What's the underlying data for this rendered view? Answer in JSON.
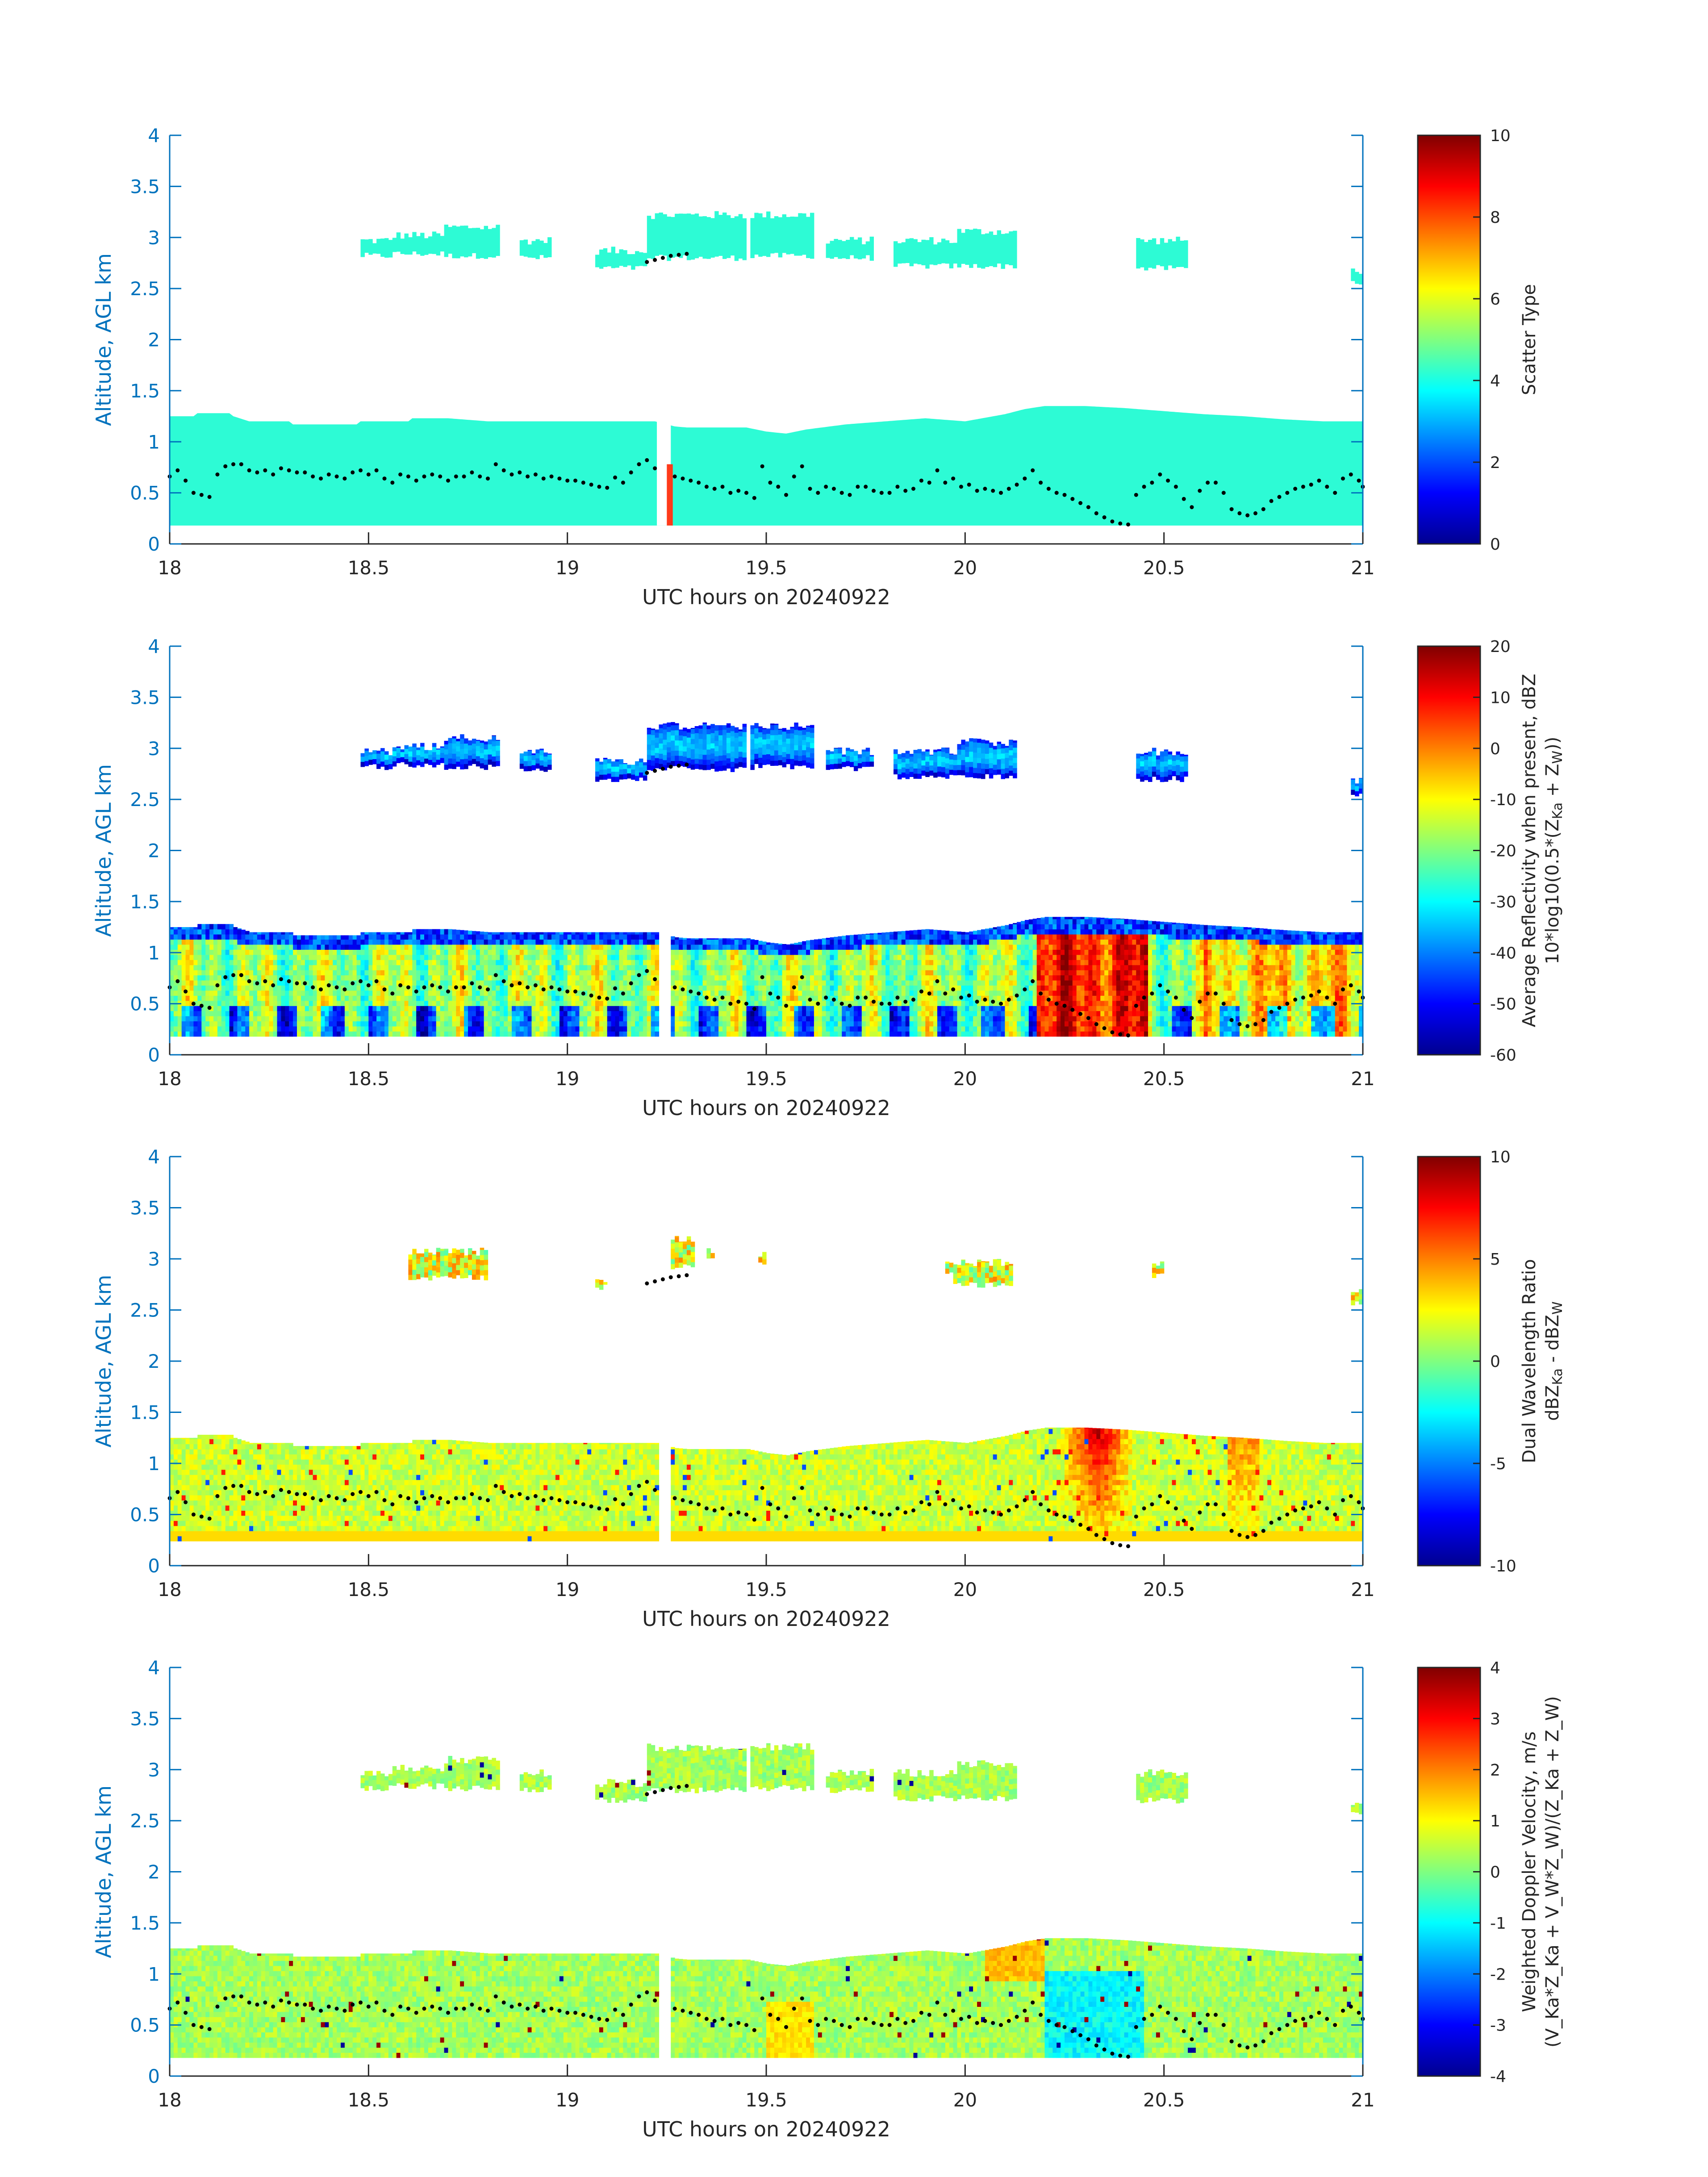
{
  "figure": {
    "background": "#ffffff",
    "axis_color": "#262626",
    "ylabel_color": "#0072BD",
    "cloud_fill_color": "#2dfbd5",
    "spike_color": "#ff3a1a",
    "marker_color": "#000000"
  },
  "chart_data": [
    {
      "type": "heatmap",
      "id": "scatter-type",
      "xlabel": "UTC hours on 20240922",
      "ylabel": "Altitude, AGL km",
      "xlim": [
        18,
        21
      ],
      "ylim": [
        0,
        4
      ],
      "xticks": [
        "18",
        "18.5",
        "19",
        "19.5",
        "20",
        "20.5",
        "21"
      ],
      "yticks": [
        "0",
        "0.5",
        "1",
        "1.5",
        "2",
        "2.5",
        "3",
        "3.5",
        "4"
      ],
      "colorbar": {
        "label": "Scatter Type",
        "range": [
          0,
          10
        ],
        "ticks": [
          "0",
          "2",
          "4",
          "6",
          "8",
          "10"
        ],
        "colormap": "jet"
      },
      "field": "type",
      "approx_value_low_cloud": 3.8,
      "spike_value": 8
    },
    {
      "type": "heatmap",
      "id": "reflectivity",
      "xlabel": "UTC hours on 20240922",
      "ylabel": "Altitude, AGL km",
      "xlim": [
        18,
        21
      ],
      "ylim": [
        0,
        4
      ],
      "xticks": [
        "18",
        "18.5",
        "19",
        "19.5",
        "20",
        "20.5",
        "21"
      ],
      "yticks": [
        "0",
        "0.5",
        "1",
        "1.5",
        "2",
        "2.5",
        "3",
        "3.5",
        "4"
      ],
      "colorbar": {
        "label_line1": "Average Reflectivity when present, dBZ",
        "label_line2_base": "10*log10(0.5*(Z",
        "sub_ka": "Ka",
        "label_line2_mid": " + Z",
        "sub_w": "W",
        "label_line2_end": "))",
        "range": [
          -60,
          20
        ],
        "ticks": [
          "-60",
          "-50",
          "-40",
          "-30",
          "-20",
          "-10",
          "0",
          "10",
          "20"
        ],
        "colormap": "jet"
      },
      "field": "reflectivity"
    },
    {
      "type": "heatmap",
      "id": "dual-wavelength-ratio",
      "xlabel": "UTC hours on 20240922",
      "ylabel": "Altitude, AGL km",
      "xlim": [
        18,
        21
      ],
      "ylim": [
        0,
        4
      ],
      "xticks": [
        "18",
        "18.5",
        "19",
        "19.5",
        "20",
        "20.5",
        "21"
      ],
      "yticks": [
        "0",
        "0.5",
        "1",
        "1.5",
        "2",
        "2.5",
        "3",
        "3.5",
        "4"
      ],
      "colorbar": {
        "label_line1": "Dual Wavelength Ratio",
        "label_line2_base": "dBZ",
        "sub_ka": "Ka",
        "label_line2_mid": " - dBZ",
        "sub_w": "W",
        "range": [
          -10,
          10
        ],
        "ticks": [
          "-10",
          "-5",
          "0",
          "5",
          "10"
        ],
        "colormap": "jet"
      },
      "field": "dwr"
    },
    {
      "type": "heatmap",
      "id": "doppler-velocity",
      "xlabel": "UTC hours on 20240922",
      "ylabel": "Altitude, AGL km",
      "xlim": [
        18,
        21
      ],
      "ylim": [
        0,
        4
      ],
      "xticks": [
        "18",
        "18.5",
        "19",
        "19.5",
        "20",
        "20.5",
        "21"
      ],
      "yticks": [
        "0",
        "0.5",
        "1",
        "1.5",
        "2",
        "2.5",
        "3",
        "3.5",
        "4"
      ],
      "colorbar": {
        "label_line1": "Weighted Doppler Velocity, m/s",
        "label_line2_text": "(V_Ka*Z_Ka + V_W*Z_W)/(Z_Ka + Z_W)",
        "range": [
          -4,
          4
        ],
        "ticks": [
          "-4",
          "-3",
          "-2",
          "-1",
          "0",
          "1",
          "2",
          "3",
          "4"
        ],
        "colormap": "jet"
      },
      "field": "velocity"
    }
  ],
  "low_cloud": {
    "top_profile_km": [
      [
        18.0,
        1.25
      ],
      [
        18.06,
        1.25
      ],
      [
        18.07,
        1.28
      ],
      [
        18.15,
        1.28
      ],
      [
        18.16,
        1.25
      ],
      [
        18.2,
        1.2
      ],
      [
        18.3,
        1.2
      ],
      [
        18.31,
        1.17
      ],
      [
        18.47,
        1.17
      ],
      [
        18.48,
        1.2
      ],
      [
        18.6,
        1.2
      ],
      [
        18.61,
        1.23
      ],
      [
        18.7,
        1.23
      ],
      [
        18.8,
        1.2
      ],
      [
        19.0,
        1.2
      ],
      [
        19.22,
        1.2
      ],
      [
        19.27,
        1.15
      ],
      [
        19.3,
        1.14
      ],
      [
        19.45,
        1.14
      ],
      [
        19.5,
        1.1
      ],
      [
        19.55,
        1.08
      ],
      [
        19.6,
        1.12
      ],
      [
        19.7,
        1.17
      ],
      [
        19.8,
        1.2
      ],
      [
        19.9,
        1.23
      ],
      [
        20.0,
        1.2
      ],
      [
        20.1,
        1.27
      ],
      [
        20.15,
        1.32
      ],
      [
        20.2,
        1.35
      ],
      [
        20.3,
        1.35
      ],
      [
        20.4,
        1.33
      ],
      [
        20.5,
        1.3
      ],
      [
        20.6,
        1.27
      ],
      [
        20.7,
        1.25
      ],
      [
        20.8,
        1.22
      ],
      [
        20.9,
        1.2
      ],
      [
        21.0,
        1.2
      ]
    ],
    "base_km": 0.18,
    "gap_hours": [
      [
        19.225,
        19.26
      ]
    ],
    "spike_hours": [
      19.25,
      19.265
    ],
    "spike_top_km": 0.78
  },
  "upper_cloud": {
    "blobs": [
      {
        "x": [
          18.48,
          18.56
        ],
        "y": [
          2.82,
          2.97
        ]
      },
      {
        "x": [
          18.56,
          18.69
        ],
        "y": [
          2.84,
          3.02
        ]
      },
      {
        "x": [
          18.69,
          18.83
        ],
        "y": [
          2.82,
          3.1
        ]
      },
      {
        "x": [
          18.88,
          18.96
        ],
        "y": [
          2.8,
          2.97
        ]
      },
      {
        "x": [
          19.07,
          19.2
        ],
        "y": [
          2.7,
          2.87
        ]
      },
      {
        "x": [
          19.2,
          19.45
        ],
        "y": [
          2.8,
          3.22
        ]
      },
      {
        "x": [
          19.46,
          19.62
        ],
        "y": [
          2.82,
          3.22
        ]
      },
      {
        "x": [
          19.65,
          19.77
        ],
        "y": [
          2.8,
          2.97
        ]
      },
      {
        "x": [
          19.82,
          19.98
        ],
        "y": [
          2.72,
          2.97
        ]
      },
      {
        "x": [
          19.98,
          20.13
        ],
        "y": [
          2.72,
          3.06
        ]
      },
      {
        "x": [
          20.43,
          20.56
        ],
        "y": [
          2.7,
          2.97
        ]
      },
      {
        "x": [
          20.97,
          21.0
        ],
        "y": [
          2.56,
          2.68
        ]
      }
    ],
    "dwr_blobs": [
      {
        "x": [
          18.6,
          18.8
        ],
        "y": [
          2.82,
          3.07
        ]
      },
      {
        "x": [
          19.26,
          19.32
        ],
        "y": [
          2.92,
          3.2
        ]
      },
      {
        "x": [
          19.35,
          19.37
        ],
        "y": [
          3.0,
          3.08
        ]
      },
      {
        "x": [
          19.07,
          19.1
        ],
        "y": [
          2.72,
          2.8
        ]
      },
      {
        "x": [
          19.48,
          19.5
        ],
        "y": [
          2.97,
          3.05
        ]
      },
      {
        "x": [
          19.95,
          19.97
        ],
        "y": [
          2.84,
          2.96
        ]
      },
      {
        "x": [
          19.97,
          20.12
        ],
        "y": [
          2.75,
          2.97
        ]
      },
      {
        "x": [
          20.47,
          20.5
        ],
        "y": [
          2.84,
          2.97
        ]
      },
      {
        "x": [
          20.97,
          21.0
        ],
        "y": [
          2.56,
          2.68
        ]
      }
    ]
  },
  "cloud_base_points": [
    [
      18.0,
      0.66
    ],
    [
      18.02,
      0.72
    ],
    [
      18.04,
      0.62
    ],
    [
      18.06,
      0.5
    ],
    [
      18.08,
      0.48
    ],
    [
      18.1,
      0.46
    ],
    [
      18.12,
      0.68
    ],
    [
      18.14,
      0.76
    ],
    [
      18.16,
      0.78
    ],
    [
      18.18,
      0.78
    ],
    [
      18.2,
      0.72
    ],
    [
      18.22,
      0.7
    ],
    [
      18.24,
      0.72
    ],
    [
      18.26,
      0.68
    ],
    [
      18.28,
      0.74
    ],
    [
      18.3,
      0.72
    ],
    [
      18.32,
      0.7
    ],
    [
      18.34,
      0.7
    ],
    [
      18.36,
      0.66
    ],
    [
      18.38,
      0.64
    ],
    [
      18.4,
      0.68
    ],
    [
      18.42,
      0.66
    ],
    [
      18.44,
      0.64
    ],
    [
      18.46,
      0.7
    ],
    [
      18.48,
      0.72
    ],
    [
      18.5,
      0.68
    ],
    [
      18.52,
      0.72
    ],
    [
      18.54,
      0.64
    ],
    [
      18.56,
      0.6
    ],
    [
      18.58,
      0.68
    ],
    [
      18.6,
      0.66
    ],
    [
      18.62,
      0.62
    ],
    [
      18.64,
      0.66
    ],
    [
      18.66,
      0.68
    ],
    [
      18.68,
      0.66
    ],
    [
      18.7,
      0.62
    ],
    [
      18.72,
      0.66
    ],
    [
      18.74,
      0.66
    ],
    [
      18.76,
      0.7
    ],
    [
      18.78,
      0.66
    ],
    [
      18.8,
      0.64
    ],
    [
      18.82,
      0.78
    ],
    [
      18.84,
      0.72
    ],
    [
      18.86,
      0.68
    ],
    [
      18.88,
      0.7
    ],
    [
      18.9,
      0.66
    ],
    [
      18.92,
      0.68
    ],
    [
      18.94,
      0.64
    ],
    [
      18.96,
      0.66
    ],
    [
      18.98,
      0.64
    ],
    [
      19.0,
      0.62
    ],
    [
      19.02,
      0.62
    ],
    [
      19.04,
      0.6
    ],
    [
      19.06,
      0.58
    ],
    [
      19.08,
      0.56
    ],
    [
      19.1,
      0.55
    ],
    [
      19.12,
      0.65
    ],
    [
      19.14,
      0.6
    ],
    [
      19.16,
      0.7
    ],
    [
      19.18,
      0.78
    ],
    [
      19.2,
      0.82
    ],
    [
      19.22,
      0.74
    ],
    [
      19.27,
      0.66
    ],
    [
      19.29,
      0.64
    ],
    [
      19.31,
      0.62
    ],
    [
      19.33,
      0.6
    ],
    [
      19.35,
      0.56
    ],
    [
      19.37,
      0.54
    ],
    [
      19.39,
      0.56
    ],
    [
      19.41,
      0.5
    ],
    [
      19.43,
      0.52
    ],
    [
      19.45,
      0.5
    ],
    [
      19.47,
      0.45
    ],
    [
      19.49,
      0.76
    ],
    [
      19.51,
      0.6
    ],
    [
      19.53,
      0.56
    ],
    [
      19.55,
      0.48
    ],
    [
      19.57,
      0.66
    ],
    [
      19.59,
      0.76
    ],
    [
      19.61,
      0.54
    ],
    [
      19.63,
      0.5
    ],
    [
      19.65,
      0.56
    ],
    [
      19.67,
      0.54
    ],
    [
      19.69,
      0.5
    ],
    [
      19.71,
      0.48
    ],
    [
      19.73,
      0.56
    ],
    [
      19.75,
      0.56
    ],
    [
      19.77,
      0.52
    ],
    [
      19.79,
      0.5
    ],
    [
      19.81,
      0.5
    ],
    [
      19.83,
      0.56
    ],
    [
      19.85,
      0.52
    ],
    [
      19.87,
      0.54
    ],
    [
      19.89,
      0.62
    ],
    [
      19.91,
      0.6
    ],
    [
      19.93,
      0.72
    ],
    [
      19.95,
      0.6
    ],
    [
      19.97,
      0.64
    ],
    [
      19.99,
      0.56
    ],
    [
      20.01,
      0.58
    ],
    [
      20.03,
      0.52
    ],
    [
      20.05,
      0.54
    ],
    [
      20.07,
      0.52
    ],
    [
      20.09,
      0.5
    ],
    [
      20.11,
      0.54
    ],
    [
      20.13,
      0.58
    ],
    [
      20.15,
      0.64
    ],
    [
      20.17,
      0.72
    ],
    [
      20.19,
      0.6
    ],
    [
      20.21,
      0.54
    ],
    [
      20.23,
      0.5
    ],
    [
      20.25,
      0.48
    ],
    [
      20.27,
      0.44
    ],
    [
      20.29,
      0.4
    ],
    [
      20.31,
      0.36
    ],
    [
      20.33,
      0.3
    ],
    [
      20.35,
      0.26
    ],
    [
      20.37,
      0.22
    ],
    [
      20.39,
      0.2
    ],
    [
      20.41,
      0.19
    ],
    [
      20.43,
      0.48
    ],
    [
      20.45,
      0.56
    ],
    [
      20.47,
      0.6
    ],
    [
      20.49,
      0.68
    ],
    [
      20.51,
      0.62
    ],
    [
      20.53,
      0.56
    ],
    [
      20.55,
      0.44
    ],
    [
      20.57,
      0.36
    ],
    [
      20.59,
      0.52
    ],
    [
      20.61,
      0.6
    ],
    [
      20.63,
      0.6
    ],
    [
      20.65,
      0.5
    ],
    [
      20.67,
      0.34
    ],
    [
      20.69,
      0.3
    ],
    [
      20.71,
      0.28
    ],
    [
      20.73,
      0.3
    ],
    [
      20.75,
      0.34
    ],
    [
      20.77,
      0.42
    ],
    [
      20.79,
      0.46
    ],
    [
      20.81,
      0.5
    ],
    [
      20.83,
      0.54
    ],
    [
      20.85,
      0.56
    ],
    [
      20.87,
      0.58
    ],
    [
      20.89,
      0.62
    ],
    [
      20.91,
      0.56
    ],
    [
      20.93,
      0.5
    ],
    [
      20.95,
      0.64
    ],
    [
      20.97,
      0.68
    ],
    [
      20.99,
      0.62
    ],
    [
      21.0,
      0.56
    ]
  ],
  "upper_base_points": [
    [
      19.2,
      2.76
    ],
    [
      19.22,
      2.78
    ],
    [
      19.24,
      2.8
    ],
    [
      19.26,
      2.82
    ],
    [
      19.28,
      2.83
    ],
    [
      19.3,
      2.84
    ]
  ]
}
